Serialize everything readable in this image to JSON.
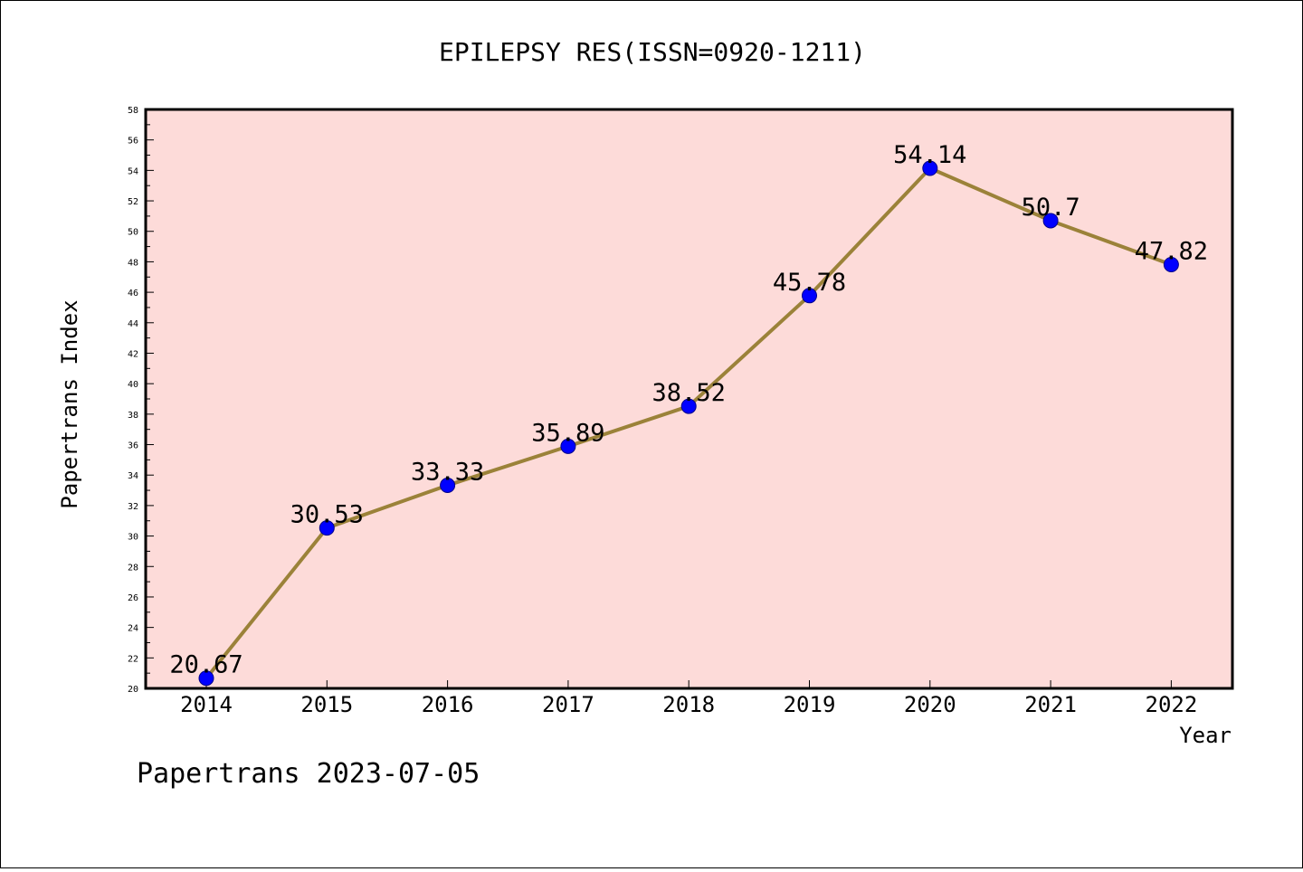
{
  "chart_data": {
    "type": "line",
    "title": "EPILEPSY RES(ISSN=0920-1211)",
    "xlabel": "Year",
    "ylabel": "Papertrans Index",
    "categories": [
      "2014",
      "2015",
      "2016",
      "2017",
      "2018",
      "2019",
      "2020",
      "2021",
      "2022"
    ],
    "series": [
      {
        "values": [
          20.67,
          30.53,
          33.33,
          35.89,
          38.52,
          45.78,
          54.14,
          50.7,
          47.82
        ]
      }
    ],
    "data_labels": [
      "20.67",
      "30.53",
      "33.33",
      "35.89",
      "38.52",
      "45.78",
      "54.14",
      "50.7",
      "47.82"
    ],
    "ylim": [
      20,
      58
    ],
    "yticks": [
      20,
      22,
      24,
      26,
      28,
      30,
      32,
      34,
      36,
      38,
      40,
      42,
      44,
      46,
      48,
      50,
      52,
      54,
      56,
      58
    ],
    "grid": false,
    "legend": "none",
    "colors": {
      "plot_background": "#fddbd9",
      "line": "#9b8239",
      "marker": "#0000ff",
      "marker_edge": "#00008b",
      "axes": "#000000"
    }
  },
  "footer": "Papertrans 2023-07-05"
}
